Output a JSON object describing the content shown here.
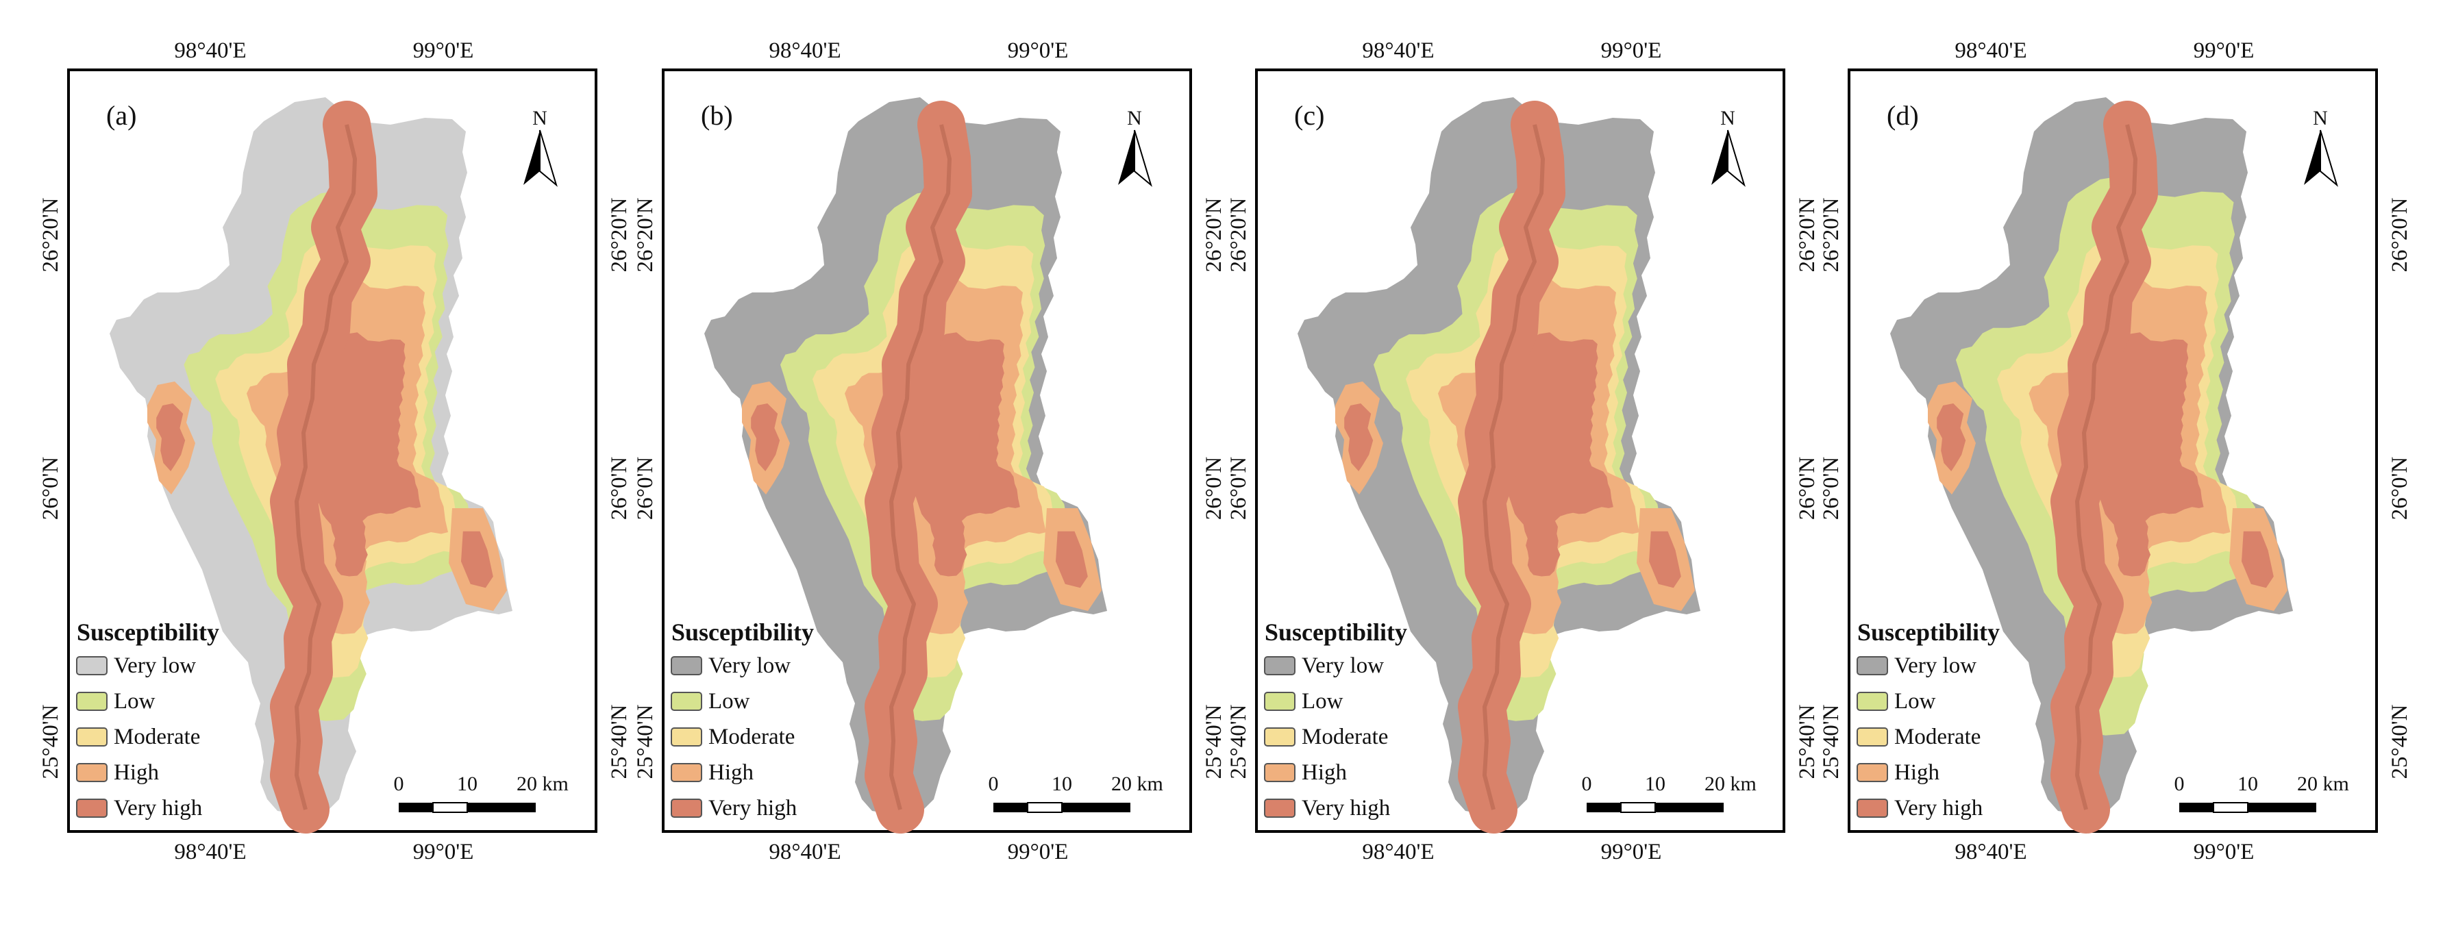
{
  "colors": {
    "very_low_dark": "#a6a6a6",
    "very_low_light": "#cfcfcf",
    "low": "#d6e38f",
    "moderate": "#f6df97",
    "high": "#f0b07e",
    "very_high": "#d9826a"
  },
  "axes": {
    "lon_labels": [
      "98°40'E",
      "99°0'E"
    ],
    "lat_labels": [
      "26°20'N",
      "26°0'N",
      "25°40'N"
    ]
  },
  "north_label": "N",
  "panels": [
    {
      "letter": "(a)",
      "very_low_color": "#cfcfcf",
      "legend": {
        "title": "Susceptibility",
        "items": [
          {
            "label": "Very low",
            "color": "#cfcfcf"
          },
          {
            "label": "Low",
            "color": "#d6e38f"
          },
          {
            "label": "Moderate",
            "color": "#f6df97"
          },
          {
            "label": "High",
            "color": "#f0b07e"
          },
          {
            "label": "Very high",
            "color": "#d9826a"
          }
        ]
      }
    },
    {
      "letter": "(b)",
      "very_low_color": "#a6a6a6",
      "legend": {
        "title": "Susceptibility",
        "items": [
          {
            "label": "Very low",
            "color": "#a6a6a6"
          },
          {
            "label": "Low",
            "color": "#d6e38f"
          },
          {
            "label": "Moderate",
            "color": "#f6df97"
          },
          {
            "label": "High",
            "color": "#f0b07e"
          },
          {
            "label": "Very high",
            "color": "#d9826a"
          }
        ]
      }
    },
    {
      "letter": "(c)",
      "very_low_color": "#a6a6a6",
      "legend": {
        "title": "Susceptibility",
        "items": [
          {
            "label": "Very low",
            "color": "#a6a6a6"
          },
          {
            "label": "Low",
            "color": "#d6e38f"
          },
          {
            "label": "Moderate",
            "color": "#f6df97"
          },
          {
            "label": "High",
            "color": "#f0b07e"
          },
          {
            "label": "Very high",
            "color": "#d9826a"
          }
        ]
      }
    },
    {
      "letter": "(d)",
      "very_low_color": "#a6a6a6",
      "legend": {
        "title": "Susceptibility",
        "items": [
          {
            "label": "Very low",
            "color": "#a6a6a6"
          },
          {
            "label": "Low",
            "color": "#d6e38f"
          },
          {
            "label": "Moderate",
            "color": "#f6df97"
          },
          {
            "label": "High",
            "color": "#f0b07e"
          },
          {
            "label": "Very high",
            "color": "#d9826a"
          }
        ]
      }
    }
  ],
  "scale_bar": {
    "ticks": [
      "0",
      "10",
      "20 km"
    ]
  }
}
